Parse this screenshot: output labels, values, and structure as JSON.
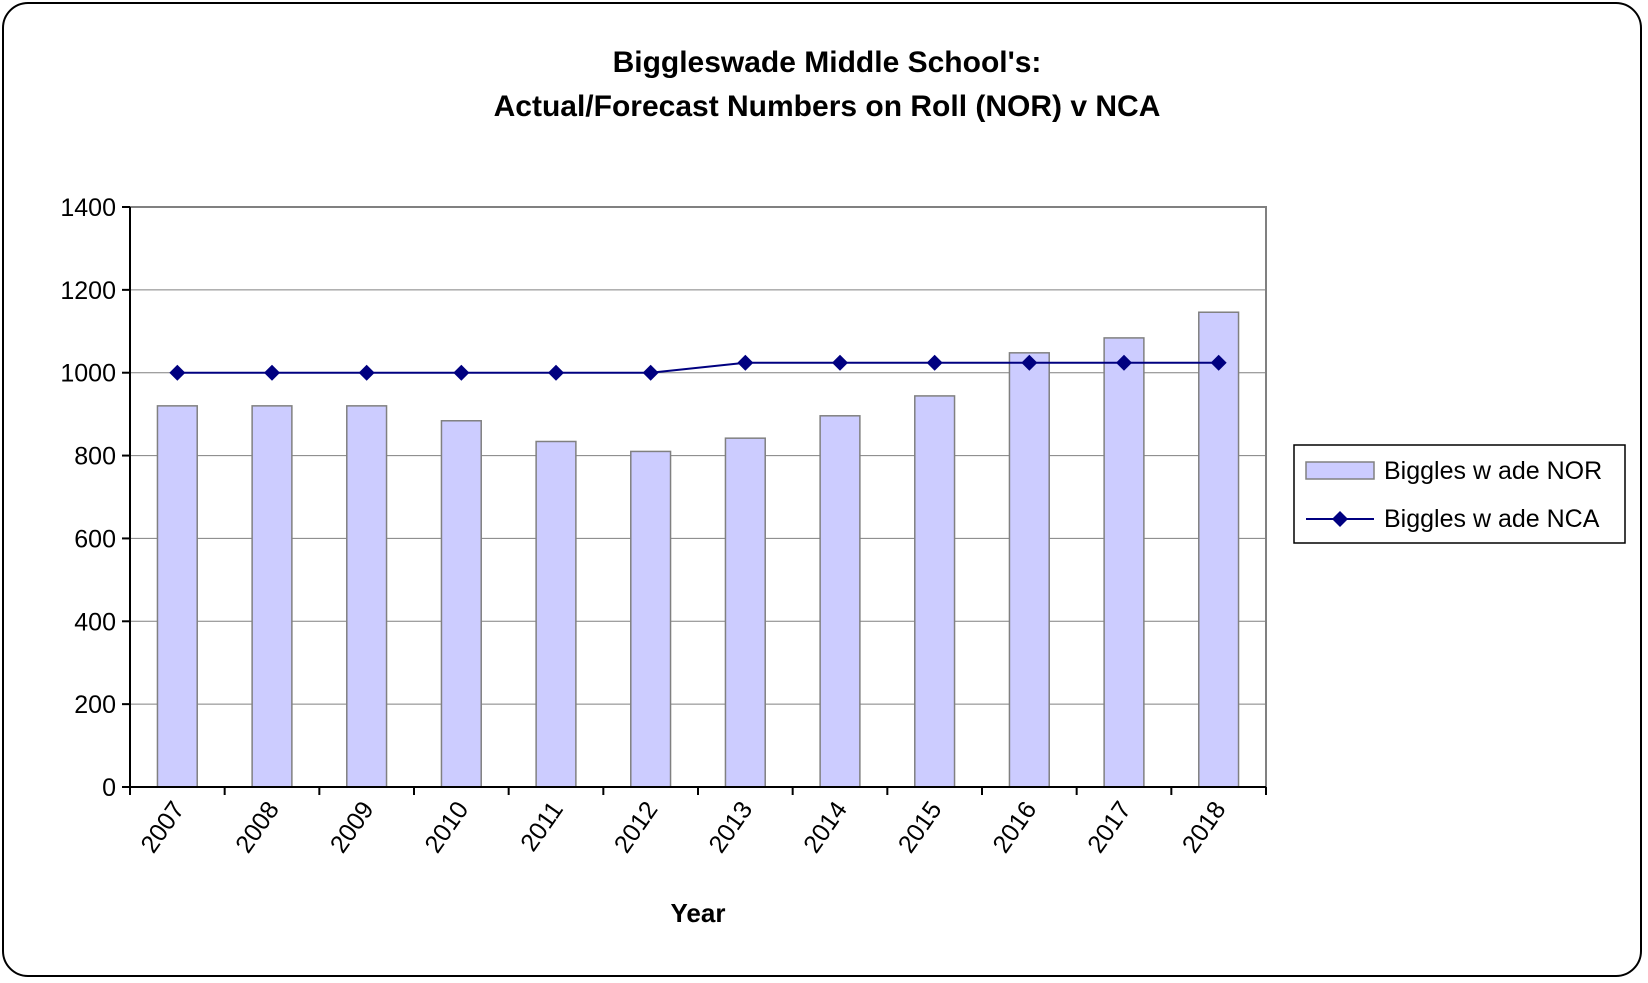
{
  "chart_data": {
    "type": "bar",
    "title_lines": [
      "Biggleswade Middle School's:",
      "Actual/Forecast Numbers on Roll (NOR) v NCA"
    ],
    "xlabel": "Year",
    "ylabel": "",
    "categories": [
      "2007",
      "2008",
      "2009",
      "2010",
      "2011",
      "2012",
      "2013",
      "2014",
      "2015",
      "2016",
      "2017",
      "2018"
    ],
    "ylim": [
      0,
      1400
    ],
    "yticks": [
      0,
      200,
      400,
      600,
      800,
      1000,
      1200,
      1400
    ],
    "ytick_labels": [
      "0",
      "200",
      "400",
      "600",
      "800",
      "1000",
      "1200",
      "1400"
    ],
    "grid": true,
    "legend_position": "right",
    "series": [
      {
        "name": "Biggles w ade NOR",
        "kind": "bar",
        "color": "#ccccff",
        "edge_color": "#808080",
        "values": [
          920,
          920,
          920,
          884,
          834,
          810,
          842,
          896,
          944,
          1048,
          1084,
          1146
        ]
      },
      {
        "name": "Biggles w ade NCA",
        "kind": "line",
        "marker": "diamond",
        "color": "#000080",
        "values": [
          1000,
          1000,
          1000,
          1000,
          1000,
          1000,
          1024,
          1024,
          1024,
          1024,
          1024,
          1024
        ]
      }
    ]
  }
}
